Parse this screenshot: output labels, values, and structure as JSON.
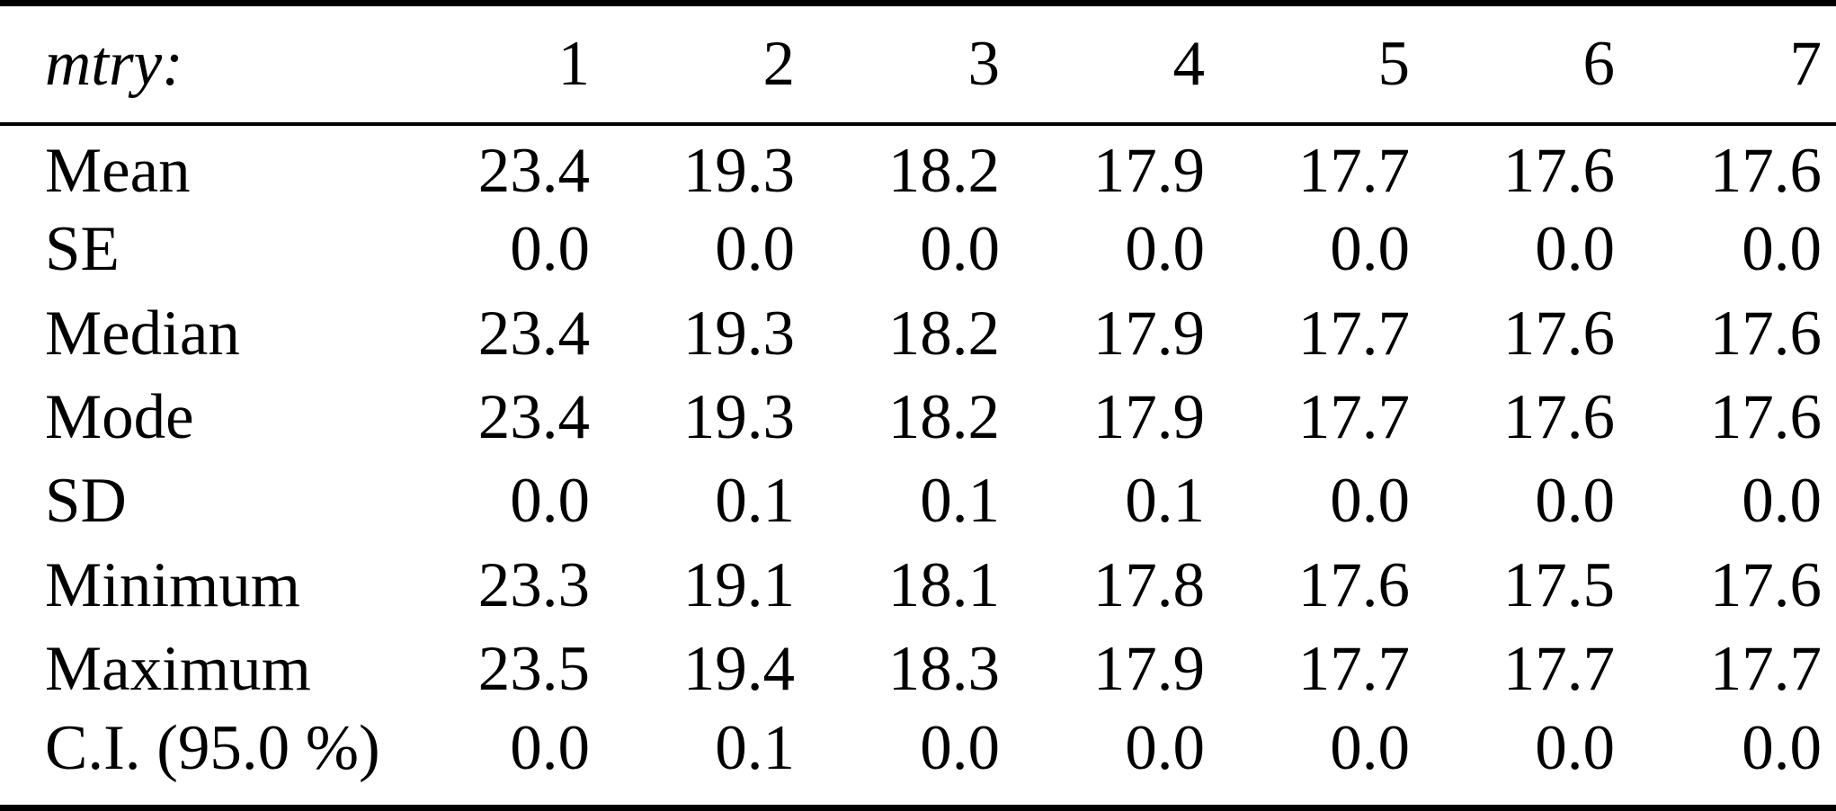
{
  "table": {
    "header": {
      "label": "mtry:",
      "columns": [
        "1",
        "2",
        "3",
        "4",
        "5",
        "6",
        "7"
      ]
    },
    "rows": [
      {
        "label": "Mean",
        "values": [
          "23.4",
          "19.3",
          "18.2",
          "17.9",
          "17.7",
          "17.6",
          "17.6"
        ]
      },
      {
        "label": "SE",
        "values": [
          "0.0",
          "0.0",
          "0.0",
          "0.0",
          "0.0",
          "0.0",
          "0.0"
        ]
      },
      {
        "label": "Median",
        "values": [
          "23.4",
          "19.3",
          "18.2",
          "17.9",
          "17.7",
          "17.6",
          "17.6"
        ]
      },
      {
        "label": "Mode",
        "values": [
          "23.4",
          "19.3",
          "18.2",
          "17.9",
          "17.7",
          "17.6",
          "17.6"
        ]
      },
      {
        "label": "SD",
        "values": [
          "0.0",
          "0.1",
          "0.1",
          "0.1",
          "0.0",
          "0.0",
          "0.0"
        ]
      },
      {
        "label": "Minimum",
        "values": [
          "23.3",
          "19.1",
          "18.1",
          "17.8",
          "17.6",
          "17.5",
          "17.6"
        ]
      },
      {
        "label": "Maximum",
        "values": [
          "23.5",
          "19.4",
          "18.3",
          "17.9",
          "17.7",
          "17.7",
          "17.7"
        ]
      },
      {
        "label": "C.I. (95.0 %)",
        "values": [
          "0.0",
          "0.1",
          "0.0",
          "0.0",
          "0.0",
          "0.0",
          "0.0"
        ]
      }
    ],
    "colors": {
      "text": "#000000",
      "background": "#ffffff",
      "rule": "#000000"
    }
  }
}
